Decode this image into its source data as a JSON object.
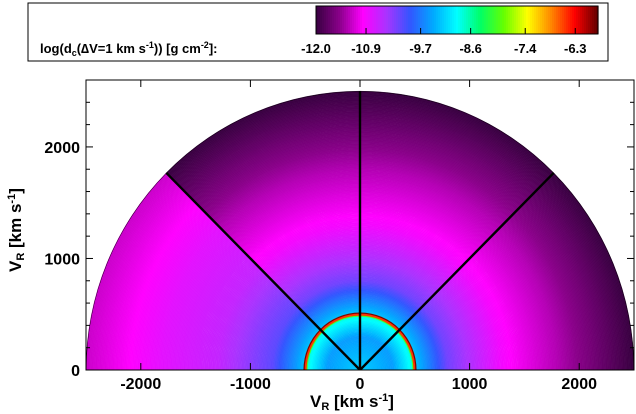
{
  "chart_data": {
    "type": "heatmap",
    "geometry": "polar-half-disk",
    "title": "",
    "xlabel": "V_R [km s^-1]",
    "xlabel_main": "V",
    "xlabel_sub": "R",
    "xlabel_unit": " [km s",
    "xlabel_exp": "-1",
    "xlabel_close": "]",
    "ylabel": "V_R [km s^-1]",
    "ylabel_main": "V",
    "ylabel_sub": "R",
    "ylabel_unit": " [km s",
    "ylabel_exp": "-1",
    "ylabel_close": "]",
    "xlim": [
      -2500,
      2500
    ],
    "ylim": [
      0,
      2600
    ],
    "x_ticks": [
      -2000,
      -1000,
      0,
      1000,
      2000
    ],
    "x_tick_labels": [
      "-2000",
      "-1000",
      "0",
      "1000",
      "2000"
    ],
    "y_ticks": [
      0,
      1000,
      2000
    ],
    "y_tick_labels": [
      "0",
      "1000",
      "2000"
    ],
    "outer_radius": 2500,
    "inner_ring_radius": 500,
    "sector_line_angles_deg": [
      45,
      90,
      135
    ],
    "colorbar": {
      "placement": "top-right",
      "label_prefix": "log(d",
      "label_sub": "c",
      "label_mid": "(",
      "label_delta": "∆",
      "label_rest": "V=1 km s",
      "label_exp1": "-1",
      "label_mid2": ")) [g cm",
      "label_exp2": "-2",
      "label_end": "]:",
      "min": -12.0,
      "max": -5.8,
      "tick_values": [
        -12.0,
        -10.9,
        -9.7,
        -8.6,
        -7.4,
        -6.3
      ],
      "tick_labels": [
        "-12.0",
        "-10.9",
        "-9.7",
        "-8.6",
        "-7.4",
        "-6.3"
      ]
    },
    "colormap": [
      "#380040",
      "#8a008a",
      "#ff00ff",
      "#aa33ff",
      "#3355ff",
      "#00aaff",
      "#00ffff",
      "#00ff66",
      "#66ff00",
      "#ffff00",
      "#ff8800",
      "#ff0000",
      "#600000"
    ],
    "radial_profile": [
      {
        "r": 0,
        "value": -9.2
      },
      {
        "r": 300,
        "value": -9.5
      },
      {
        "r": 480,
        "value": -8.8
      },
      {
        "r": 500,
        "value": -6.3
      },
      {
        "r": 520,
        "value": -9.3
      },
      {
        "r": 800,
        "value": -10.2
      },
      {
        "r": 1300,
        "value": -10.9
      },
      {
        "r": 1800,
        "value": -11.3
      },
      {
        "r": 2200,
        "value": -11.7
      },
      {
        "r": 2500,
        "value": -12.0
      }
    ],
    "sector_offsets": [
      {
        "from_deg": 0,
        "to_deg": 45,
        "offset": 0.0
      },
      {
        "from_deg": 45,
        "to_deg": 90,
        "offset": 0.0
      },
      {
        "from_deg": 90,
        "to_deg": 135,
        "offset": 0.0
      },
      {
        "from_deg": 135,
        "to_deg": 180,
        "offset": 0.8
      }
    ]
  }
}
